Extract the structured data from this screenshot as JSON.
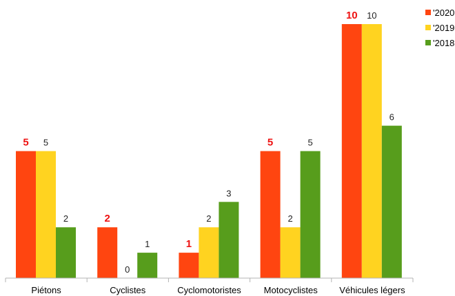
{
  "chart_data": {
    "type": "bar",
    "title": "",
    "xlabel": "",
    "ylabel": "",
    "ylim": [
      0,
      10.5
    ],
    "grid": false,
    "legend_position": "top-right",
    "categories": [
      "Piétons",
      "Cyclistes",
      "Cyclomotoristes",
      "Motocyclistes",
      "Véhicules légers"
    ],
    "series": [
      {
        "name": "'2020",
        "color": "#ff4510",
        "label_color": "#ee1111",
        "label_bold": true,
        "values": [
          5,
          2,
          1,
          5,
          10
        ]
      },
      {
        "name": "'2019",
        "color": "#ffd320",
        "label_color": "#222222",
        "label_bold": false,
        "values": [
          5,
          0,
          2,
          2,
          10
        ]
      },
      {
        "name": "'2018",
        "color": "#579d1c",
        "label_color": "#222222",
        "label_bold": false,
        "values": [
          2,
          1,
          3,
          5,
          6
        ]
      }
    ]
  }
}
